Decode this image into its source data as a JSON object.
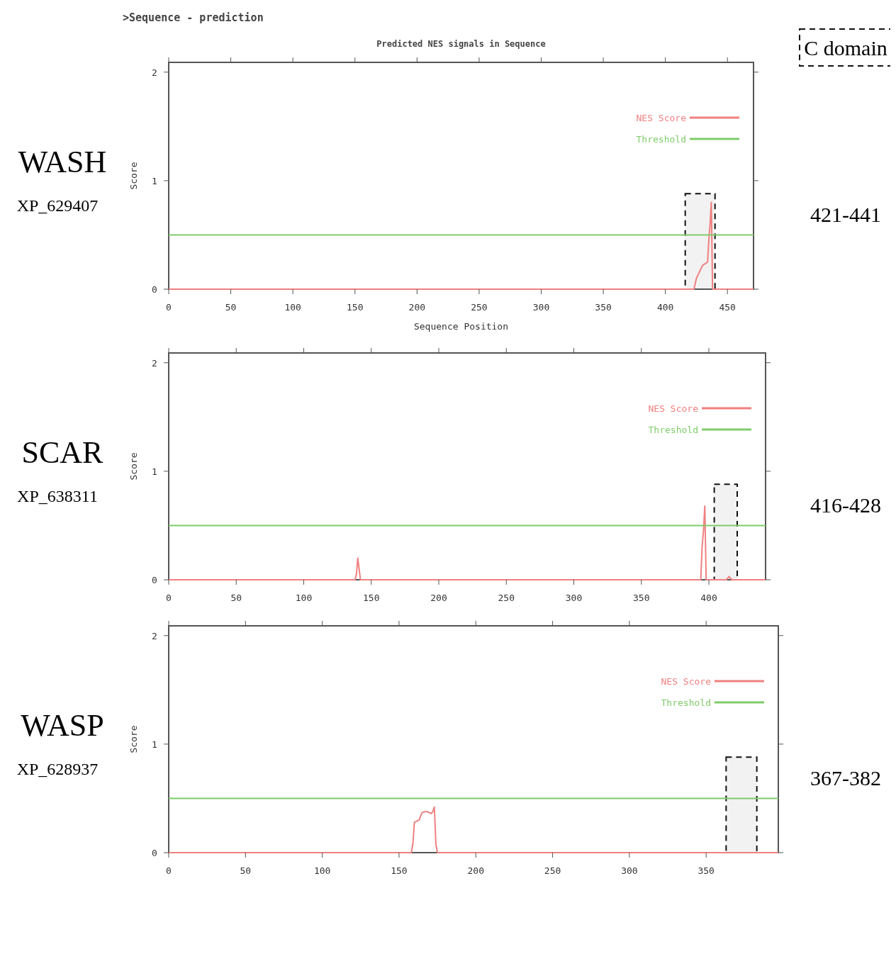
{
  "chart_data": [
    {
      "type": "line",
      "title": ">Sequence - prediction",
      "subtitle": "Predicted NES signals in Sequence",
      "xlabel": "Sequence Position",
      "ylabel": "Score",
      "annotations": [
        "WASH",
        "XP_629407",
        "C domain",
        "421-441"
      ],
      "xlim": [
        0,
        471
      ],
      "xticks": [
        0,
        50,
        100,
        150,
        200,
        250,
        300,
        350,
        400,
        450
      ],
      "ylim": [
        0,
        2.09
      ],
      "yticks": [
        0,
        1,
        2
      ],
      "series": [
        {
          "name": "NES Score",
          "color": "#f08080",
          "x": [
            0,
            423,
            425,
            430,
            434,
            435,
            436,
            437,
            438,
            471
          ],
          "values": [
            0,
            0,
            0.1,
            0.22,
            0.25,
            0.45,
            0.6,
            0.8,
            0,
            0
          ]
        },
        {
          "name": "Threshold",
          "color": "#7fcc6a",
          "x": [
            0,
            471
          ],
          "values": [
            0.5,
            0.5
          ]
        }
      ],
      "bands": [
        {
          "axis": "x",
          "from": 416,
          "to": 440,
          "color": "#f2f2f2"
        }
      ],
      "legend": "top right",
      "marker": "none",
      "line_style": "solid",
      "grid": false
    },
    {
      "type": "line",
      "ylabel": "Score",
      "annotations": [
        "SCAR",
        "XP_638311",
        "416-428"
      ],
      "xlim": [
        0,
        442
      ],
      "xticks": [
        0,
        50,
        100,
        150,
        200,
        250,
        300,
        350,
        400
      ],
      "ylim": [
        0,
        2.09
      ],
      "yticks": [
        0,
        1,
        2
      ],
      "series": [
        {
          "name": "NES Score",
          "color": "#f08080",
          "x": [
            0,
            138,
            139,
            140,
            141,
            142,
            394,
            395,
            396,
            397,
            398,
            413,
            415,
            417,
            442
          ],
          "values": [
            0,
            0,
            0.05,
            0.2,
            0.1,
            0,
            0,
            0.3,
            0.45,
            0.68,
            0,
            0,
            0.03,
            0,
            0
          ]
        },
        {
          "name": "Threshold",
          "color": "#7fcc6a",
          "x": [
            0,
            442
          ],
          "values": [
            0.5,
            0.5
          ]
        }
      ],
      "bands": [
        {
          "axis": "x",
          "from": 404,
          "to": 421,
          "color": "#f2f2f2"
        }
      ],
      "legend": "top right",
      "marker": "none",
      "line_style": "solid",
      "grid": false
    },
    {
      "type": "line",
      "ylabel": "Score",
      "annotations": [
        "WASP",
        "XP_628937",
        "367-382"
      ],
      "xlim": [
        0,
        397
      ],
      "xticks": [
        0,
        50,
        100,
        150,
        200,
        250,
        300,
        350
      ],
      "ylim": [
        0,
        2.09
      ],
      "yticks": [
        0,
        1,
        2
      ],
      "series": [
        {
          "name": "NES Score",
          "color": "#f08080",
          "x": [
            0,
            158,
            159,
            160,
            163,
            165,
            168,
            171,
            172,
            173,
            174,
            175,
            397
          ],
          "values": [
            0,
            0,
            0.08,
            0.28,
            0.3,
            0.37,
            0.38,
            0.36,
            0.38,
            0.42,
            0.08,
            0,
            0
          ]
        },
        {
          "name": "Threshold",
          "color": "#7fcc6a",
          "x": [
            0,
            397
          ],
          "values": [
            0.5,
            0.5
          ]
        }
      ],
      "bands": [
        {
          "axis": "x",
          "from": 363,
          "to": 383,
          "color": "#f2f2f2"
        }
      ],
      "legend": "top right",
      "marker": "none",
      "line_style": "solid",
      "grid": false
    }
  ]
}
